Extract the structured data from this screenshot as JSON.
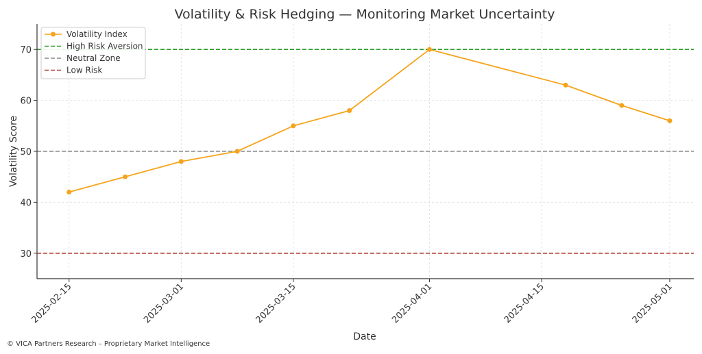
{
  "chart_data": {
    "type": "line",
    "title": "Volatility & Risk Hedging — Monitoring Market Uncertainty",
    "xlabel": "Date",
    "ylabel": "Volatility Score",
    "x_ticks": [
      "2025-02-15",
      "2025-03-01",
      "2025-03-15",
      "2025-04-01",
      "2025-04-15",
      "2025-05-01"
    ],
    "y_ticks": [
      30,
      40,
      50,
      60,
      70
    ],
    "xlim": [
      "2025-02-11",
      "2025-05-04"
    ],
    "ylim": [
      25,
      75
    ],
    "grid": true,
    "legend_position": "top-left",
    "series": [
      {
        "name": "Volatility Index",
        "color": "#f5a31a",
        "x": [
          "2025-02-15",
          "2025-02-22",
          "2025-03-01",
          "2025-03-08",
          "2025-03-15",
          "2025-03-22",
          "2025-04-01",
          "2025-04-18",
          "2025-04-25",
          "2025-05-01"
        ],
        "y": [
          42,
          45,
          48,
          50,
          55,
          58,
          70,
          63,
          59,
          56
        ]
      }
    ],
    "reference_lines": [
      {
        "name": "High Risk Aversion",
        "y": 70,
        "color": "#2ca02c"
      },
      {
        "name": "Neutral Zone",
        "y": 50,
        "color": "#888888"
      },
      {
        "name": "Low Risk",
        "y": 30,
        "color": "#b03a2e"
      }
    ]
  },
  "footer": {
    "text": "© VICA Partners Research – Proprietary Market Intelligence"
  }
}
